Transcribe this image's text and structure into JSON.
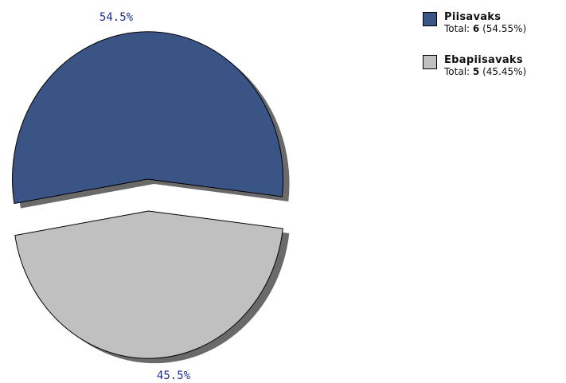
{
  "chart_data": {
    "type": "pie",
    "exploded": true,
    "slices": [
      {
        "label": "Piisavaks",
        "value": 6,
        "percent_label": "54.5%",
        "total_prefix": "Total: ",
        "total_value": "6",
        "total_suffix": " (54.55%)",
        "color": "#3b5486"
      },
      {
        "label": "Ebapiisavaks",
        "value": 5,
        "percent_label": "45.5%",
        "total_prefix": "Total: ",
        "total_value": "5",
        "total_suffix": " (45.45%)",
        "color": "#c0c0c0"
      }
    ],
    "legend_position": "top-right"
  }
}
